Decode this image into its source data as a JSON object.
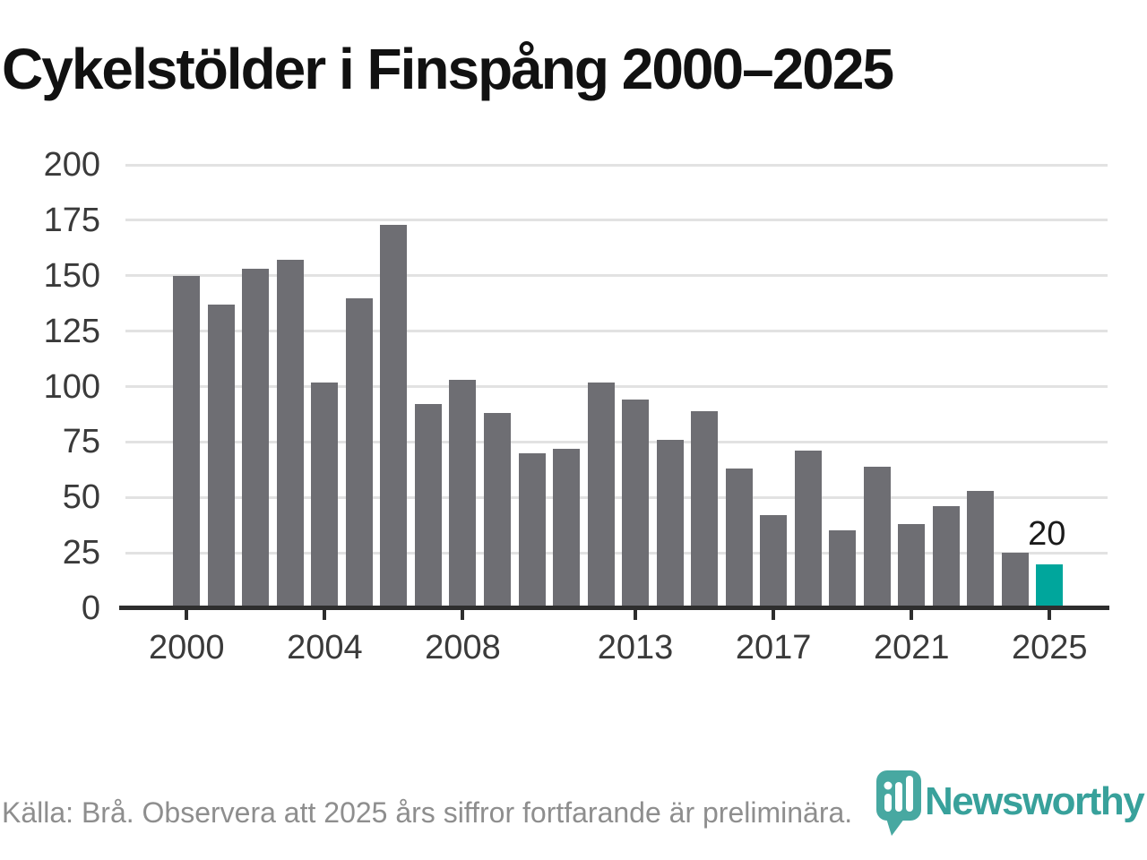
{
  "title": "Cykelstölder i Finspång 2000–2025",
  "footer": {
    "source_note": "Källa: Brå. Observera att 2025 års siffror fortfarande är preliminära."
  },
  "branding": {
    "logo_text": "Newsworthy",
    "logo_icon": "newsworthy-pin-icon",
    "logo_text_color": "#38a19b",
    "pin_color": "#47a8a1"
  },
  "chart_data": {
    "type": "bar",
    "title": "Cykelstölder i Finspång 2000–2025",
    "categories": [
      2000,
      2001,
      2002,
      2003,
      2004,
      2005,
      2006,
      2007,
      2008,
      2009,
      2010,
      2011,
      2012,
      2013,
      2014,
      2015,
      2016,
      2017,
      2018,
      2019,
      2020,
      2021,
      2022,
      2023,
      2024,
      2025
    ],
    "values": [
      150,
      137,
      153,
      157,
      102,
      140,
      173,
      92,
      103,
      88,
      70,
      72,
      102,
      94,
      76,
      89,
      63,
      42,
      71,
      35,
      64,
      38,
      46,
      53,
      25,
      20
    ],
    "xlabel": "",
    "ylabel": "",
    "ylim": [
      0,
      200
    ],
    "y_ticks": [
      0,
      25,
      50,
      75,
      100,
      125,
      150,
      175,
      200
    ],
    "x_tick_years": [
      2000,
      2004,
      2008,
      2013,
      2017,
      2021,
      2025
    ],
    "grid": "horizontal",
    "legend": "none",
    "bar_color": "#6e6e73",
    "highlight_year": 2025,
    "highlight_color": "#00a69c",
    "annotation": {
      "year": 2025,
      "text": "20"
    }
  }
}
